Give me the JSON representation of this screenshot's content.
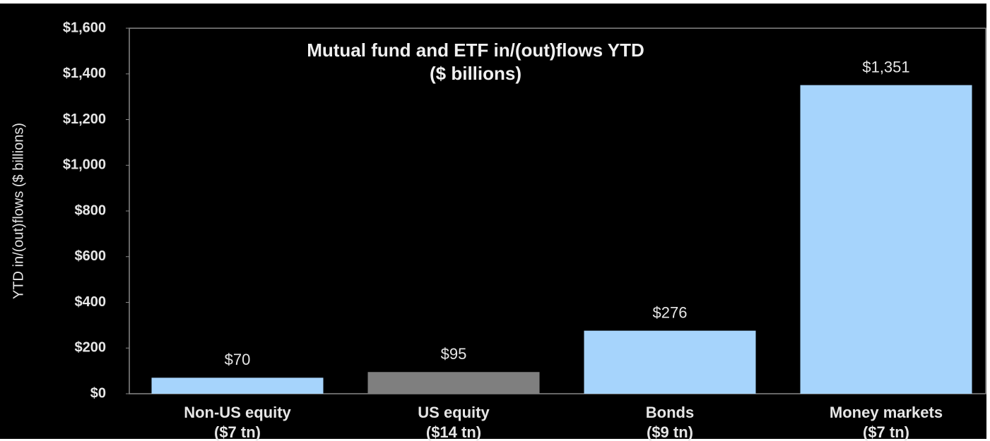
{
  "chart_data": {
    "type": "bar",
    "title": "Mutual fund and ETF in/(out)flows YTD",
    "subtitle": "($ billions)",
    "y_axis_label": "YTD in/(out)flows ($ billions)",
    "categories": [
      [
        "Non-US equity",
        "($7 tn)"
      ],
      [
        "US equity",
        "($14 tn)"
      ],
      [
        "Bonds",
        "($9 tn)"
      ],
      [
        "Money markets",
        "($7 tn)"
      ]
    ],
    "values": [
      70,
      95,
      276,
      1351
    ],
    "value_labels": [
      "$70",
      "$95",
      "$276",
      "$1,351"
    ],
    "colors": [
      "#a6d4fc",
      "#7f7f7f",
      "#a6d4fc",
      "#a6d4fc"
    ],
    "ylim": [
      0,
      1600
    ],
    "yticks": [
      {
        "value": 0,
        "label": "$0"
      },
      {
        "value": 200,
        "label": "$200"
      },
      {
        "value": 400,
        "label": "$400"
      },
      {
        "value": 600,
        "label": "$600"
      },
      {
        "value": 800,
        "label": "$800"
      },
      {
        "value": 1000,
        "label": "$1,000"
      },
      {
        "value": 1200,
        "label": "$1,200"
      },
      {
        "value": 1400,
        "label": "$1,400"
      },
      {
        "value": 1600,
        "label": "$1,600"
      }
    ],
    "grid": false
  }
}
